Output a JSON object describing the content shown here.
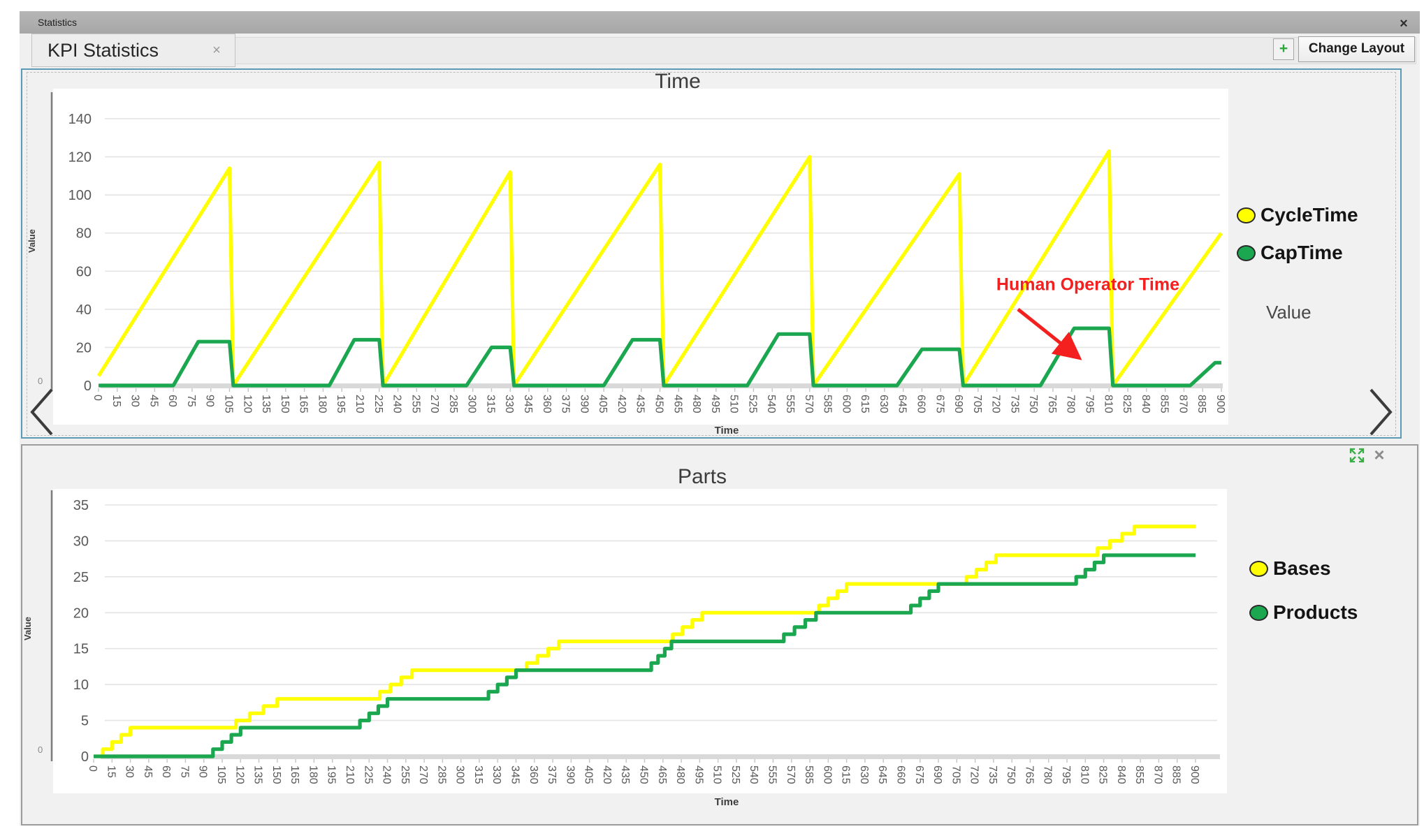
{
  "window": {
    "title": "Statistics",
    "close_icon": "×"
  },
  "tabs": {
    "active_tab": "KPI Statistics",
    "tab_close_icon": "×",
    "add_view_icon": "+",
    "change_layout_label": "Change Layout"
  },
  "panels": {
    "time": {
      "y_axis_title": "Value",
      "x_axis_title": "Time",
      "legend_footer": "Value",
      "corner_label": "0"
    },
    "parts": {
      "y_axis_title": "Value",
      "x_axis_title": "Time",
      "corner_label": "0",
      "close_icon": "×"
    }
  },
  "chart_data": [
    {
      "id": "time",
      "type": "line",
      "title": "Time",
      "xlabel": "Time",
      "ylabel": "Value",
      "grid": true,
      "legend_position": "right",
      "xlim": [
        0,
        900
      ],
      "ylim": [
        0,
        140
      ],
      "y_ticks": [
        0,
        20,
        40,
        60,
        80,
        100,
        120,
        140
      ],
      "x_ticks": [
        0,
        15,
        30,
        45,
        60,
        75,
        90,
        105,
        120,
        135,
        150,
        165,
        180,
        195,
        210,
        225,
        240,
        255,
        270,
        285,
        300,
        315,
        330,
        345,
        360,
        375,
        390,
        405,
        420,
        435,
        450,
        465,
        480,
        495,
        510,
        525,
        540,
        555,
        570,
        585,
        600,
        615,
        630,
        645,
        660,
        675,
        690,
        705,
        720,
        735,
        750,
        765,
        780,
        795,
        810,
        825,
        840,
        855,
        870,
        885,
        900
      ],
      "series": [
        {
          "name": "CycleTime",
          "color": "#ffff00",
          "step": false,
          "points": [
            [
              0,
              5
            ],
            [
              105,
              114
            ],
            [
              108,
              0
            ],
            [
              225,
              117
            ],
            [
              228,
              0
            ],
            [
              330,
              112
            ],
            [
              333,
              0
            ],
            [
              450,
              116
            ],
            [
              453,
              0
            ],
            [
              570,
              120
            ],
            [
              573,
              0
            ],
            [
              690,
              111
            ],
            [
              693,
              0
            ],
            [
              810,
              123
            ],
            [
              813,
              0
            ],
            [
              900,
              80
            ]
          ]
        },
        {
          "name": "CapTime",
          "color": "#1ba750",
          "step": false,
          "points": [
            [
              0,
              0
            ],
            [
              60,
              0
            ],
            [
              80,
              23
            ],
            [
              105,
              23
            ],
            [
              108,
              0
            ],
            [
              185,
              0
            ],
            [
              205,
              24
            ],
            [
              225,
              24
            ],
            [
              228,
              0
            ],
            [
              295,
              0
            ],
            [
              315,
              20
            ],
            [
              330,
              20
            ],
            [
              333,
              0
            ],
            [
              405,
              0
            ],
            [
              428,
              24
            ],
            [
              450,
              24
            ],
            [
              453,
              0
            ],
            [
              520,
              0
            ],
            [
              545,
              27
            ],
            [
              570,
              27
            ],
            [
              573,
              0
            ],
            [
              640,
              0
            ],
            [
              660,
              19
            ],
            [
              690,
              19
            ],
            [
              693,
              0
            ],
            [
              755,
              0
            ],
            [
              782,
              30
            ],
            [
              810,
              30
            ],
            [
              813,
              0
            ],
            [
              875,
              0
            ],
            [
              895,
              12
            ],
            [
              900,
              12
            ]
          ]
        }
      ],
      "annotation": {
        "text": "Human Operator Time",
        "color": "#f42020",
        "text_pos": [
          793,
          50
        ],
        "arrow": [
          737,
          40,
          785,
          15
        ]
      }
    },
    {
      "id": "parts",
      "type": "line",
      "title": "Parts",
      "xlabel": "Time",
      "ylabel": "Value",
      "grid": true,
      "legend_position": "right",
      "xlim": [
        0,
        900
      ],
      "ylim": [
        0,
        35
      ],
      "y_ticks": [
        0,
        5,
        10,
        15,
        20,
        25,
        30,
        35
      ],
      "x_ticks": [
        0,
        15,
        30,
        45,
        60,
        75,
        90,
        105,
        120,
        135,
        150,
        165,
        180,
        195,
        210,
        225,
        240,
        255,
        270,
        285,
        300,
        315,
        330,
        345,
        360,
        375,
        390,
        405,
        420,
        435,
        450,
        465,
        480,
        495,
        510,
        525,
        540,
        555,
        570,
        585,
        600,
        615,
        630,
        645,
        660,
        675,
        690,
        705,
        720,
        735,
        750,
        765,
        780,
        795,
        810,
        825,
        840,
        855,
        870,
        885,
        900
      ],
      "series": [
        {
          "name": "Bases",
          "color": "#ffff00",
          "step": true,
          "points": [
            [
              0,
              0
            ],
            [
              30,
              4
            ],
            [
              105,
              4
            ],
            [
              150,
              8
            ],
            [
              225,
              8
            ],
            [
              260,
              12
            ],
            [
              345,
              12
            ],
            [
              380,
              16
            ],
            [
              465,
              16
            ],
            [
              497,
              20
            ],
            [
              585,
              20
            ],
            [
              615,
              24
            ],
            [
              705,
              24
            ],
            [
              737,
              28
            ],
            [
              810,
              28
            ],
            [
              850,
              32
            ],
            [
              900,
              32
            ]
          ]
        },
        {
          "name": "Products",
          "color": "#1ba750",
          "step": true,
          "points": [
            [
              0,
              0
            ],
            [
              90,
              0
            ],
            [
              120,
              4
            ],
            [
              210,
              4
            ],
            [
              240,
              8
            ],
            [
              315,
              8
            ],
            [
              345,
              12
            ],
            [
              450,
              12
            ],
            [
              472,
              16
            ],
            [
              555,
              16
            ],
            [
              590,
              20
            ],
            [
              660,
              20
            ],
            [
              690,
              24
            ],
            [
              795,
              24
            ],
            [
              825,
              28
            ],
            [
              900,
              28
            ]
          ]
        }
      ]
    }
  ]
}
